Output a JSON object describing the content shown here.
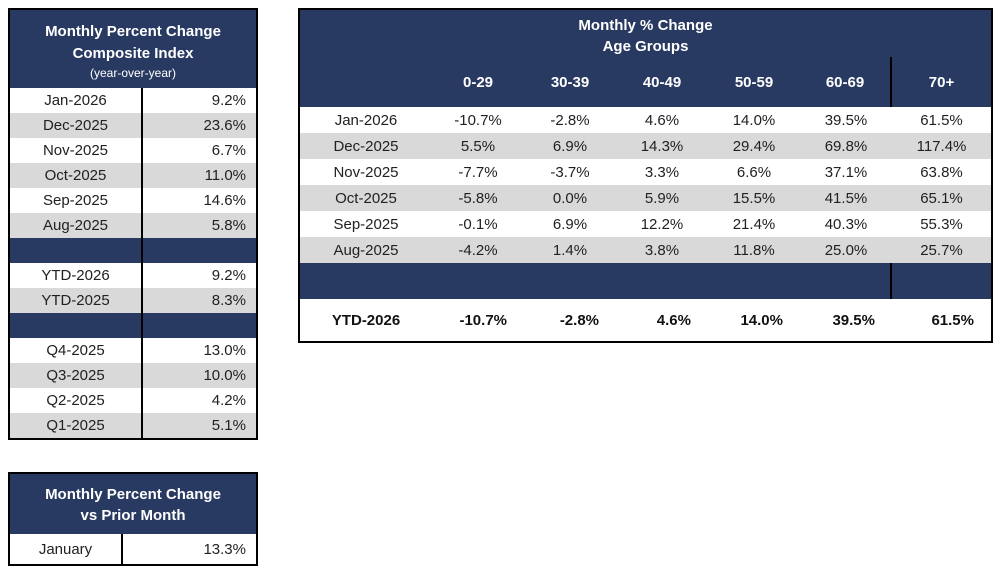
{
  "colors": {
    "navy": "#293A62",
    "stripe": "#D9D9D9",
    "border": "#000000",
    "header_text": "#FFFFFF",
    "body_text": "#212121"
  },
  "composite_table": {
    "title_line1": "Monthly Percent Change",
    "title_line2": "Composite Index",
    "subtitle": "(year-over-year)",
    "monthly_rows": [
      {
        "label": "Jan-2026",
        "value": "9.2%"
      },
      {
        "label": "Dec-2025",
        "value": "23.6%"
      },
      {
        "label": "Nov-2025",
        "value": "6.7%"
      },
      {
        "label": "Oct-2025",
        "value": "11.0%"
      },
      {
        "label": "Sep-2025",
        "value": "14.6%"
      },
      {
        "label": "Aug-2025",
        "value": "5.8%"
      }
    ],
    "ytd_rows": [
      {
        "label": "YTD-2026",
        "value": "9.2%"
      },
      {
        "label": "YTD-2025",
        "value": "8.3%"
      }
    ],
    "quarter_rows": [
      {
        "label": "Q4-2025",
        "value": "13.0%"
      },
      {
        "label": "Q3-2025",
        "value": "10.0%"
      },
      {
        "label": "Q2-2025",
        "value": "4.2%"
      },
      {
        "label": "Q1-2025",
        "value": "5.1%"
      }
    ]
  },
  "prior_month_table": {
    "title_line1": "Monthly Percent Change",
    "title_line2": "vs Prior Month",
    "row": {
      "label": "January",
      "value": "13.3%"
    }
  },
  "age_table": {
    "title_line1": "Monthly % Change",
    "title_line2": "Age Groups",
    "columns": [
      "0-29",
      "30-39",
      "40-49",
      "50-59",
      "60-69",
      "70+"
    ],
    "rows": [
      {
        "label": "Jan-2026",
        "values": [
          "-10.7%",
          "-2.8%",
          "4.6%",
          "14.0%",
          "39.5%",
          "61.5%"
        ]
      },
      {
        "label": "Dec-2025",
        "values": [
          "5.5%",
          "6.9%",
          "14.3%",
          "29.4%",
          "69.8%",
          "117.4%"
        ]
      },
      {
        "label": "Nov-2025",
        "values": [
          "-7.7%",
          "-3.7%",
          "3.3%",
          "6.6%",
          "37.1%",
          "63.8%"
        ]
      },
      {
        "label": "Oct-2025",
        "values": [
          "-5.8%",
          "0.0%",
          "5.9%",
          "15.5%",
          "41.5%",
          "65.1%"
        ]
      },
      {
        "label": "Sep-2025",
        "values": [
          "-0.1%",
          "6.9%",
          "12.2%",
          "21.4%",
          "40.3%",
          "55.3%"
        ]
      },
      {
        "label": "Aug-2025",
        "values": [
          "-4.2%",
          "1.4%",
          "3.8%",
          "11.8%",
          "25.0%",
          "25.7%"
        ]
      }
    ],
    "ytd_row": {
      "label": "YTD-2026",
      "values": [
        "-10.7%",
        "-2.8%",
        "4.6%",
        "14.0%",
        "39.5%",
        "61.5%"
      ]
    }
  }
}
